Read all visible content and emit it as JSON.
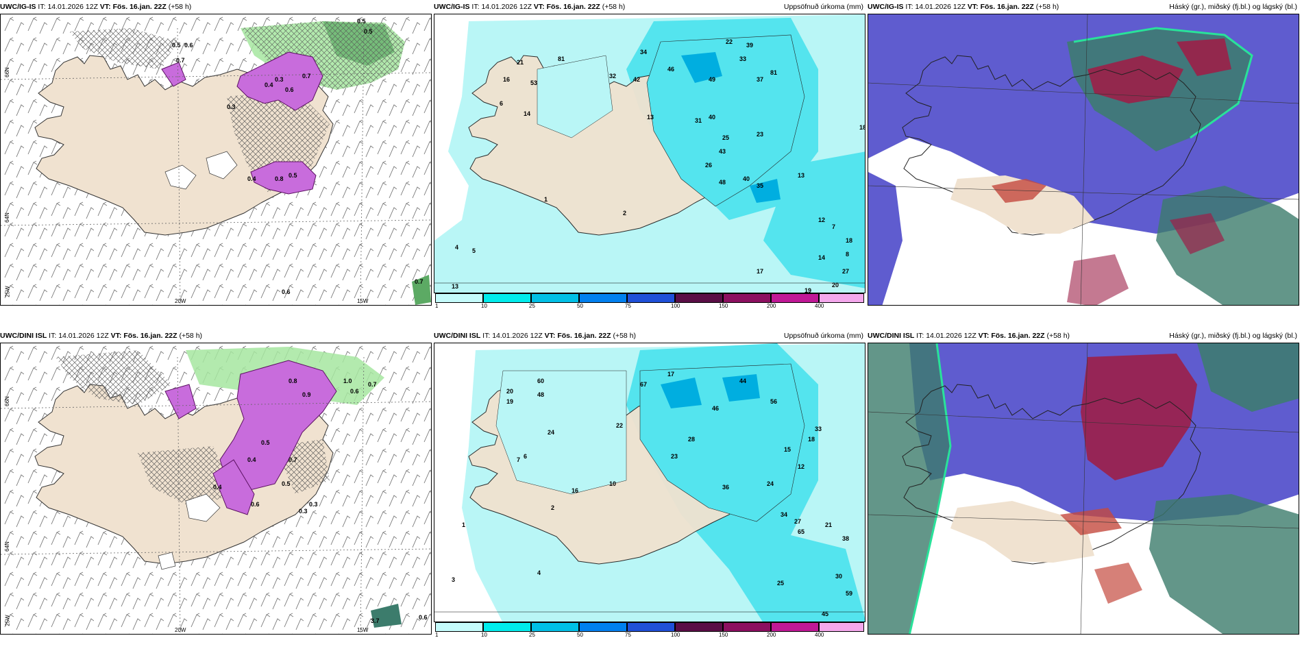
{
  "run": {
    "it_prefix": "IT:",
    "it_time": "14.01.2026 12Z",
    "vt_prefix": "VT:",
    "vt_time": "Fös. 16.jan. 22Z",
    "lead": "(+58 h)"
  },
  "rows": [
    {
      "model": "UWC/IG-IS"
    },
    {
      "model": "UWC/DINI ISL"
    }
  ],
  "titles": {
    "precip": "Uppsöfnuð úrkoma (mm)",
    "clouds": "Háský (gr.), miðský (fj.bl.) og lágský (bl.)"
  },
  "coords": {
    "lat66": "66N",
    "lat64": "64N",
    "lon25": "25W",
    "lon20": "20W",
    "lon15": "15W"
  },
  "colorbar": {
    "ticks": [
      "1",
      "10",
      "25",
      "50",
      "75",
      "100",
      "150",
      "200",
      "400"
    ],
    "colors": [
      "#c5fbfb",
      "#00ecec",
      "#00c0e6",
      "#0080ef",
      "#2050d8",
      "#5a0e46",
      "#8c1060",
      "#c01896",
      "#e640cc",
      "#f4a8ec"
    ]
  },
  "colors": {
    "land": "#f0e2d0",
    "snow": "#c86cdc",
    "green": "#a6e6a0",
    "sea_precip": "#b9f6f6",
    "cyan": "#54e4ee",
    "blue": "#5f5ccf",
    "maroon": "#9c1f48",
    "teal": "#3c7c6c"
  },
  "precip_values": {
    "top": [
      "13",
      "21",
      "16",
      "53",
      "81",
      "34",
      "32",
      "42",
      "46",
      "49",
      "22",
      "33",
      "39",
      "37",
      "81",
      "6",
      "14",
      "13",
      "40",
      "31",
      "25",
      "23",
      "43",
      "48",
      "26",
      "40",
      "35",
      "13",
      "7",
      "8",
      "1",
      "2",
      "5",
      "4",
      "12",
      "18",
      "17",
      "27",
      "20",
      "14",
      "19",
      "18"
    ],
    "bottom": [
      "20",
      "48",
      "19",
      "60",
      "67",
      "17",
      "44",
      "56",
      "46",
      "28",
      "22",
      "24",
      "23",
      "36",
      "34",
      "33",
      "12",
      "15",
      "18",
      "21",
      "25",
      "30",
      "45",
      "59",
      "10",
      "1",
      "2",
      "3",
      "7",
      "4",
      "16",
      "27",
      "65",
      "24",
      "38",
      "6"
    ]
  },
  "snow_values": {
    "top": [
      "0.5",
      "0.6",
      "0.5",
      "0.7",
      "0.3",
      "0.4",
      "0.6",
      "0.7",
      "0.4",
      "0.5",
      "0.8",
      "0.3",
      "0.6",
      "0.5",
      "0.7"
    ],
    "bottom": [
      "0.6",
      "0.7",
      "1.0",
      "0.8",
      "0.4",
      "0.9",
      "0.3",
      "0.7",
      "0.5",
      "0.5",
      "0.6",
      "3.7",
      "0.6",
      "0.3",
      "0.4"
    ]
  }
}
